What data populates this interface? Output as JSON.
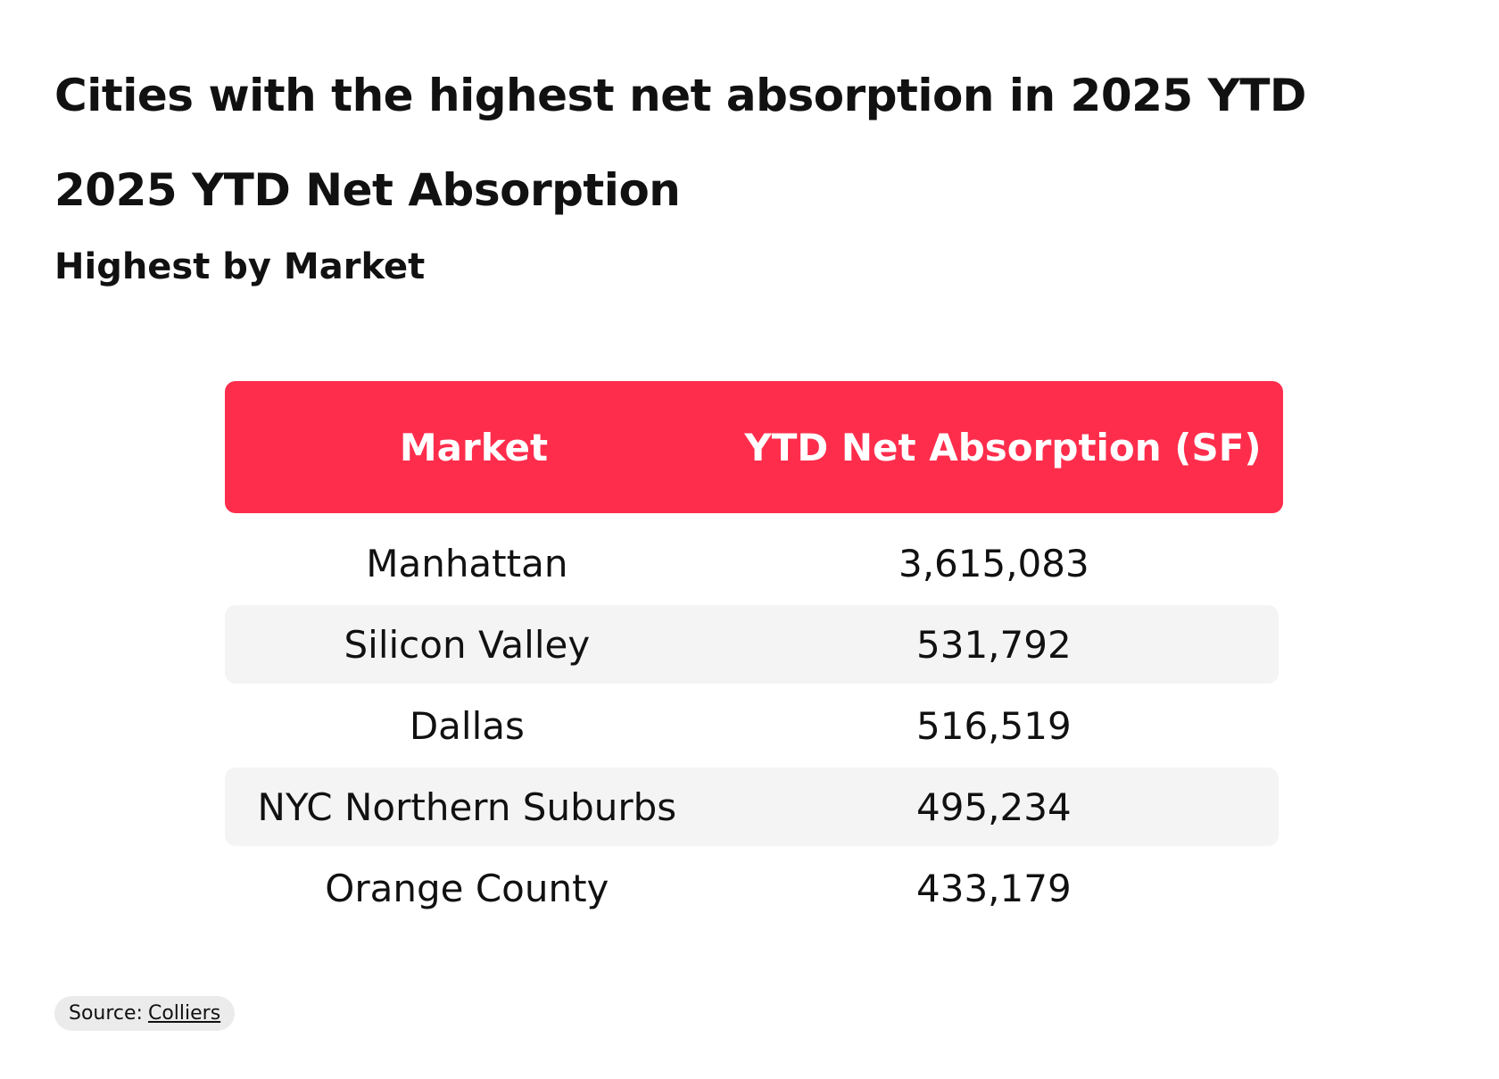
{
  "title": "Cities with the highest net absorption in 2025 YTD",
  "chart_data": {
    "type": "table",
    "title": "2025 YTD Net Absorption",
    "subtitle": "Highest by Market",
    "columns": [
      "Market",
      "YTD Net Absorption (SF)"
    ],
    "rows": [
      {
        "market": "Manhattan",
        "value": "3,615,083"
      },
      {
        "market": "Silicon Valley",
        "value": "531,792"
      },
      {
        "market": "Dallas",
        "value": "516,519"
      },
      {
        "market": "NYC Northern Suburbs",
        "value": "495,234"
      },
      {
        "market": "Orange County",
        "value": "433,179"
      }
    ],
    "values": [
      3615083,
      531792,
      516519,
      495234,
      433179
    ]
  },
  "source": {
    "label": "Source:",
    "link_text": "Colliers"
  },
  "colors": {
    "header_bg": "#ff2d4c",
    "header_text": "#ffffff",
    "stripe_bg": "#f4f4f4"
  }
}
